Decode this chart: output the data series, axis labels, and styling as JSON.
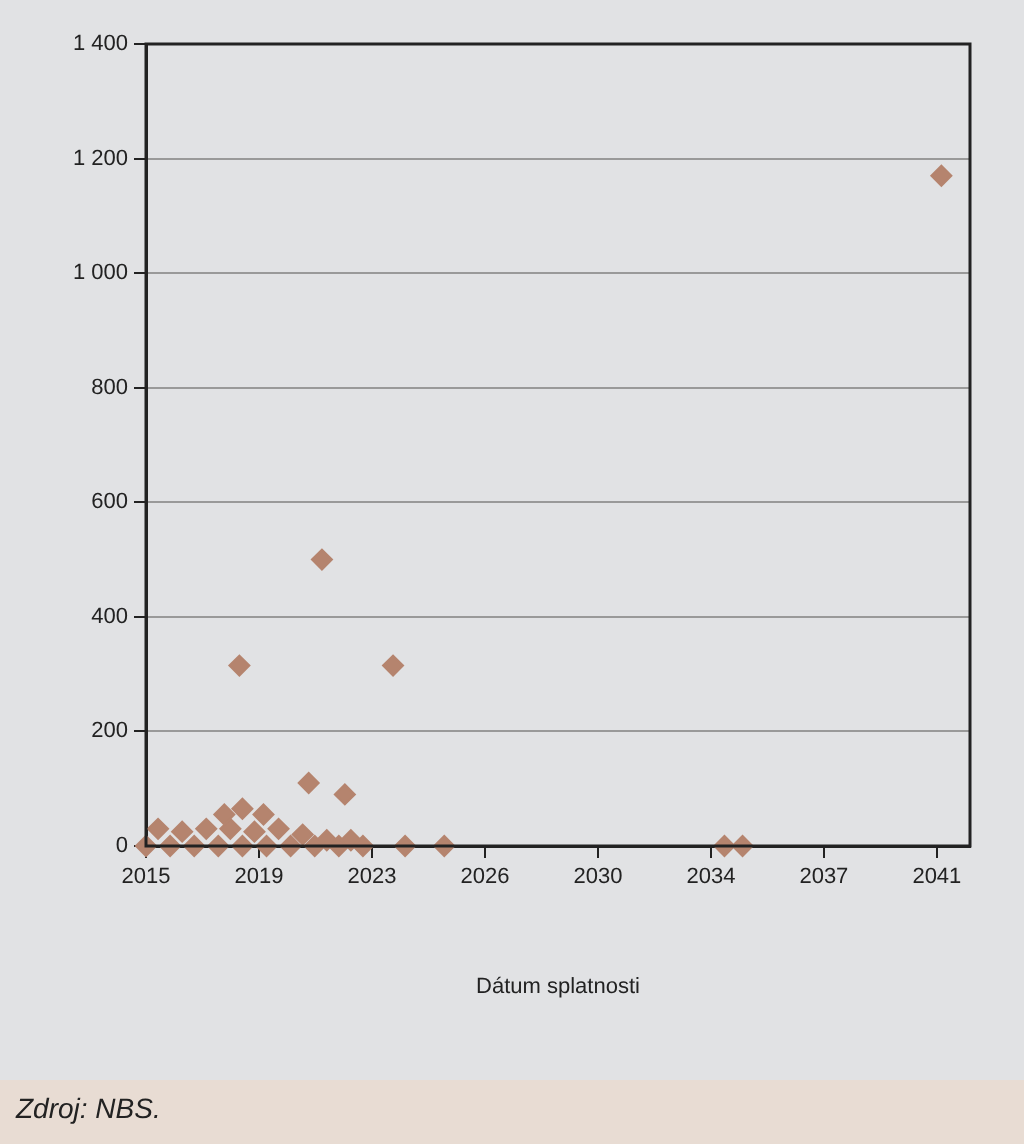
{
  "chart_data": {
    "type": "scatter",
    "xlabel": "Dátum splatnosti",
    "annotations": [
      "Zdroj: NBS."
    ],
    "x": [
      2015.0,
      2015.4,
      2015.8,
      2016.2,
      2016.6,
      2017.0,
      2017.4,
      2017.8,
      2018.2,
      2018.6,
      2019.0,
      2019.4,
      2019.8,
      2020.2,
      2020.6,
      2021.0,
      2021.4,
      2021.8,
      2022.2,
      2017.6,
      2018.2,
      2018.9,
      2018.1,
      2020.84,
      2020.4,
      2021.6,
      2023.2,
      2023.6,
      2024.9,
      2034.2,
      2034.8,
      2041.4
    ],
    "values": [
      0,
      30,
      0,
      25,
      0,
      30,
      0,
      30,
      0,
      25,
      0,
      30,
      0,
      20,
      0,
      10,
      0,
      10,
      0,
      55,
      65,
      55,
      315,
      500,
      110,
      90,
      315,
      0,
      0,
      0,
      0,
      1170
    ],
    "color": "#b5846e",
    "marker": "diamond",
    "xlim": [
      2015,
      2042.35
    ],
    "xticks": [
      {
        "value": 2015,
        "label": "2015"
      },
      {
        "value": 2018.75,
        "label": "2019"
      },
      {
        "value": 2022.5,
        "label": "2023"
      },
      {
        "value": 2026.25,
        "label": "2026"
      },
      {
        "value": 2030,
        "label": "2030"
      },
      {
        "value": 2033.75,
        "label": "2034"
      },
      {
        "value": 2037.5,
        "label": "2037"
      },
      {
        "value": 2041.25,
        "label": "2041"
      }
    ],
    "ylim": [
      0,
      1400
    ],
    "yticks": [
      0,
      200,
      400,
      600,
      800,
      {
        "value": 1000,
        "label": "1 000"
      },
      {
        "value": 1200,
        "label": "1 200"
      },
      {
        "value": 1400,
        "label": "1 400"
      }
    ],
    "grid": "y"
  }
}
